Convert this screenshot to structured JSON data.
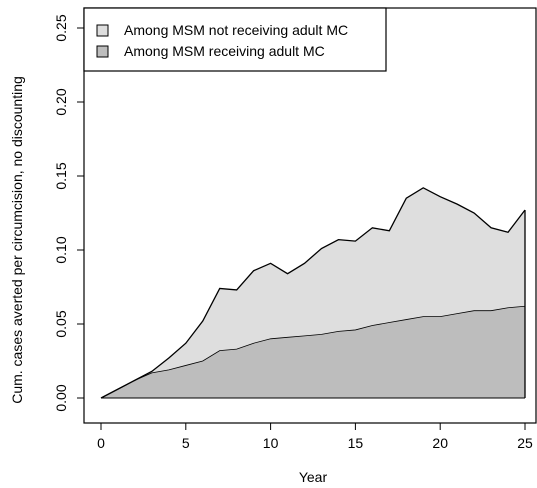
{
  "chart_data": {
    "type": "area",
    "x": [
      0,
      1,
      2,
      3,
      4,
      5,
      6,
      7,
      8,
      9,
      10,
      11,
      12,
      13,
      14,
      15,
      16,
      17,
      18,
      19,
      20,
      21,
      22,
      23,
      24,
      25
    ],
    "series": [
      {
        "name": "Among MSM receiving adult MC",
        "color": "#bdbdbd",
        "values": [
          0.0,
          0.006,
          0.012,
          0.017,
          0.019,
          0.022,
          0.025,
          0.032,
          0.033,
          0.037,
          0.04,
          0.041,
          0.042,
          0.043,
          0.045,
          0.046,
          0.049,
          0.051,
          0.053,
          0.055,
          0.055,
          0.057,
          0.059,
          0.059,
          0.061,
          0.062
        ]
      },
      {
        "name": "Among MSM not receiving adult MC",
        "color": "#dedede",
        "values": [
          0.0,
          0.0,
          0.0,
          0.001,
          0.008,
          0.015,
          0.027,
          0.042,
          0.04,
          0.049,
          0.051,
          0.043,
          0.049,
          0.058,
          0.062,
          0.06,
          0.066,
          0.062,
          0.082,
          0.087,
          0.081,
          0.074,
          0.066,
          0.056,
          0.051,
          0.065
        ]
      }
    ],
    "stacked": true,
    "xlabel": "Year",
    "ylabel": "Cum. cases averted per circumcision, no discounting",
    "xlim": [
      0,
      25
    ],
    "ylim": [
      0,
      0.25
    ],
    "x_ticks": [
      0,
      5,
      10,
      15,
      20,
      25
    ],
    "x_tick_labels": [
      "0",
      "5",
      "10",
      "15",
      "20",
      "25"
    ],
    "y_ticks": [
      0.0,
      0.05,
      0.1,
      0.15,
      0.2,
      0.25
    ],
    "y_tick_labels": [
      "0.00",
      "0.05",
      "0.10",
      "0.15",
      "0.20",
      "0.25"
    ],
    "legend": [
      {
        "label": "Among MSM not receiving adult MC",
        "color": "#dedede"
      },
      {
        "label": "Among MSM receiving adult MC",
        "color": "#bdbdbd"
      }
    ],
    "legend_position": "top-left",
    "grid": false
  }
}
